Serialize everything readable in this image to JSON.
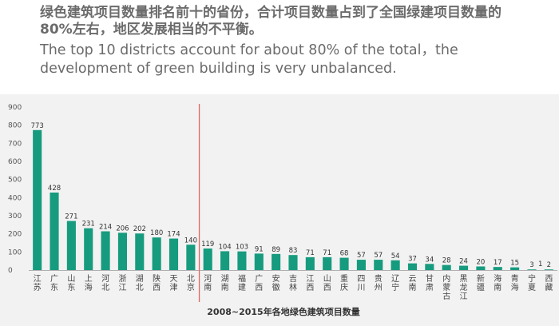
{
  "header": {
    "title_cn": "绿色建筑项目数量排名前十的省份，合计项目数量占到了全国绿建项目数量的\n80%左右，地区发展相当的不平衡。",
    "title_en": "The top 10 districts account for about 80% of the total，the\ndevelopment of green building is very unbalanced."
  },
  "colors": {
    "bar": "#169b7f",
    "divider": "#e06666",
    "panel_bg": "#f2f2f2"
  },
  "chart_data": {
    "type": "bar",
    "title": "2008~2015年各地绿色建筑项目数量",
    "xlabel": "2008~2015年各地绿色建筑项目数量",
    "ylabel": "",
    "ylim": [
      0,
      900
    ],
    "yticks": [
      0,
      100,
      200,
      300,
      400,
      500,
      600,
      700,
      800,
      900
    ],
    "grid": false,
    "divider_after_index": 9,
    "categories": [
      "江苏",
      "广东",
      "山东",
      "上海",
      "河北",
      "浙江",
      "湖北",
      "陕西",
      "天津",
      "北京",
      "河南",
      "湖南",
      "福建",
      "广西",
      "安徽",
      "吉林",
      "江西",
      "山西",
      "重庆",
      "四川",
      "贵州",
      "辽宁",
      "云南",
      "甘肃",
      "内蒙古",
      "黑龙江",
      "新疆",
      "海南",
      "青海",
      "宁夏",
      "西藏"
    ],
    "values": [
      773,
      428,
      271,
      231,
      214,
      206,
      202,
      180,
      174,
      140,
      119,
      104,
      103,
      91,
      89,
      83,
      71,
      71,
      68,
      57,
      57,
      54,
      37,
      34,
      28,
      24,
      20,
      17,
      15,
      3,
      2
    ],
    "extra_labels": [
      {
        "text": "1",
        "category": "宁夏"
      }
    ]
  }
}
